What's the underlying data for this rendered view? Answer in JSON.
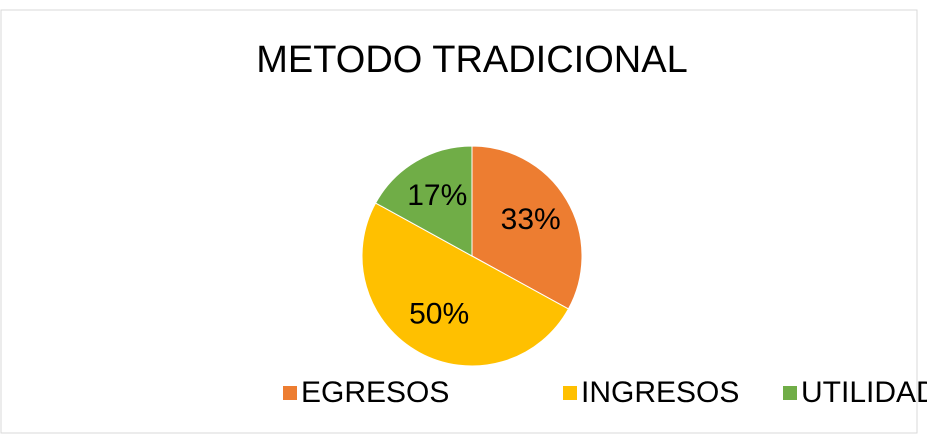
{
  "chart_data": {
    "type": "pie",
    "title": "METODO TRADICIONAL",
    "categories": [
      "EGRESOS",
      "INGRESOS",
      "UTILIDAD"
    ],
    "values": [
      33,
      50,
      17
    ],
    "value_labels": [
      "33%",
      "50%",
      "17%"
    ],
    "colors": [
      "#ED7D31",
      "#FFC000",
      "#70AD47"
    ],
    "legend": "bottom"
  }
}
